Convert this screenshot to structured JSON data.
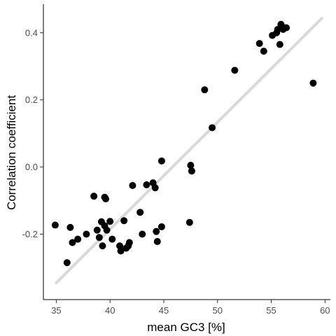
{
  "chart_data": {
    "type": "scatter",
    "title": "",
    "xlabel": "mean GC3 [%]",
    "ylabel": "Correlation coefficient",
    "xlim": [
      33.8,
      60.5
    ],
    "ylim": [
      -0.395,
      0.485
    ],
    "x_ticks": [
      35,
      40,
      45,
      50,
      55,
      60
    ],
    "x_tick_labels": [
      "35",
      "40",
      "45",
      "50",
      "55",
      "60"
    ],
    "y_ticks": [
      -0.2,
      0.0,
      0.2,
      0.4
    ],
    "y_tick_labels": [
      "-0.2",
      "0.0",
      "0.2",
      "0.4"
    ],
    "grid": false,
    "legend": "none",
    "point_color": "#000000",
    "trend_color": "#d9d9d9",
    "trend_line": {
      "x": [
        35.0,
        59.7
      ],
      "y": [
        -0.345,
        0.443
      ]
    },
    "points": [
      {
        "x": 34.9,
        "y": -0.173
      },
      {
        "x": 36.0,
        "y": -0.285
      },
      {
        "x": 36.3,
        "y": -0.18
      },
      {
        "x": 36.5,
        "y": -0.225
      },
      {
        "x": 37.0,
        "y": -0.215
      },
      {
        "x": 37.8,
        "y": -0.2
      },
      {
        "x": 38.5,
        "y": -0.087
      },
      {
        "x": 38.8,
        "y": -0.188
      },
      {
        "x": 39.0,
        "y": -0.21
      },
      {
        "x": 39.2,
        "y": -0.163
      },
      {
        "x": 39.3,
        "y": -0.235
      },
      {
        "x": 39.5,
        "y": -0.175
      },
      {
        "x": 39.5,
        "y": -0.09
      },
      {
        "x": 39.6,
        "y": -0.095
      },
      {
        "x": 39.7,
        "y": -0.188
      },
      {
        "x": 40.0,
        "y": -0.162
      },
      {
        "x": 40.2,
        "y": -0.215
      },
      {
        "x": 40.9,
        "y": -0.235
      },
      {
        "x": 41.0,
        "y": -0.25
      },
      {
        "x": 41.3,
        "y": -0.16
      },
      {
        "x": 41.5,
        "y": -0.242
      },
      {
        "x": 41.7,
        "y": -0.235
      },
      {
        "x": 41.8,
        "y": -0.225
      },
      {
        "x": 42.1,
        "y": -0.055
      },
      {
        "x": 42.8,
        "y": -0.135
      },
      {
        "x": 43.0,
        "y": -0.2
      },
      {
        "x": 43.4,
        "y": -0.053
      },
      {
        "x": 44.0,
        "y": -0.047
      },
      {
        "x": 44.2,
        "y": -0.062
      },
      {
        "x": 44.3,
        "y": -0.192
      },
      {
        "x": 44.4,
        "y": -0.222
      },
      {
        "x": 44.8,
        "y": -0.178
      },
      {
        "x": 44.8,
        "y": 0.018
      },
      {
        "x": 47.4,
        "y": -0.165
      },
      {
        "x": 47.5,
        "y": 0.005
      },
      {
        "x": 47.6,
        "y": -0.012
      },
      {
        "x": 48.8,
        "y": 0.23
      },
      {
        "x": 49.5,
        "y": 0.117
      },
      {
        "x": 51.6,
        "y": 0.288
      },
      {
        "x": 53.9,
        "y": 0.368
      },
      {
        "x": 54.3,
        "y": 0.345
      },
      {
        "x": 55.1,
        "y": 0.392
      },
      {
        "x": 55.5,
        "y": 0.4
      },
      {
        "x": 55.6,
        "y": 0.41
      },
      {
        "x": 55.8,
        "y": 0.365
      },
      {
        "x": 55.9,
        "y": 0.425
      },
      {
        "x": 56.0,
        "y": 0.418
      },
      {
        "x": 56.1,
        "y": 0.41
      },
      {
        "x": 56.4,
        "y": 0.415
      },
      {
        "x": 58.9,
        "y": 0.25
      }
    ]
  }
}
